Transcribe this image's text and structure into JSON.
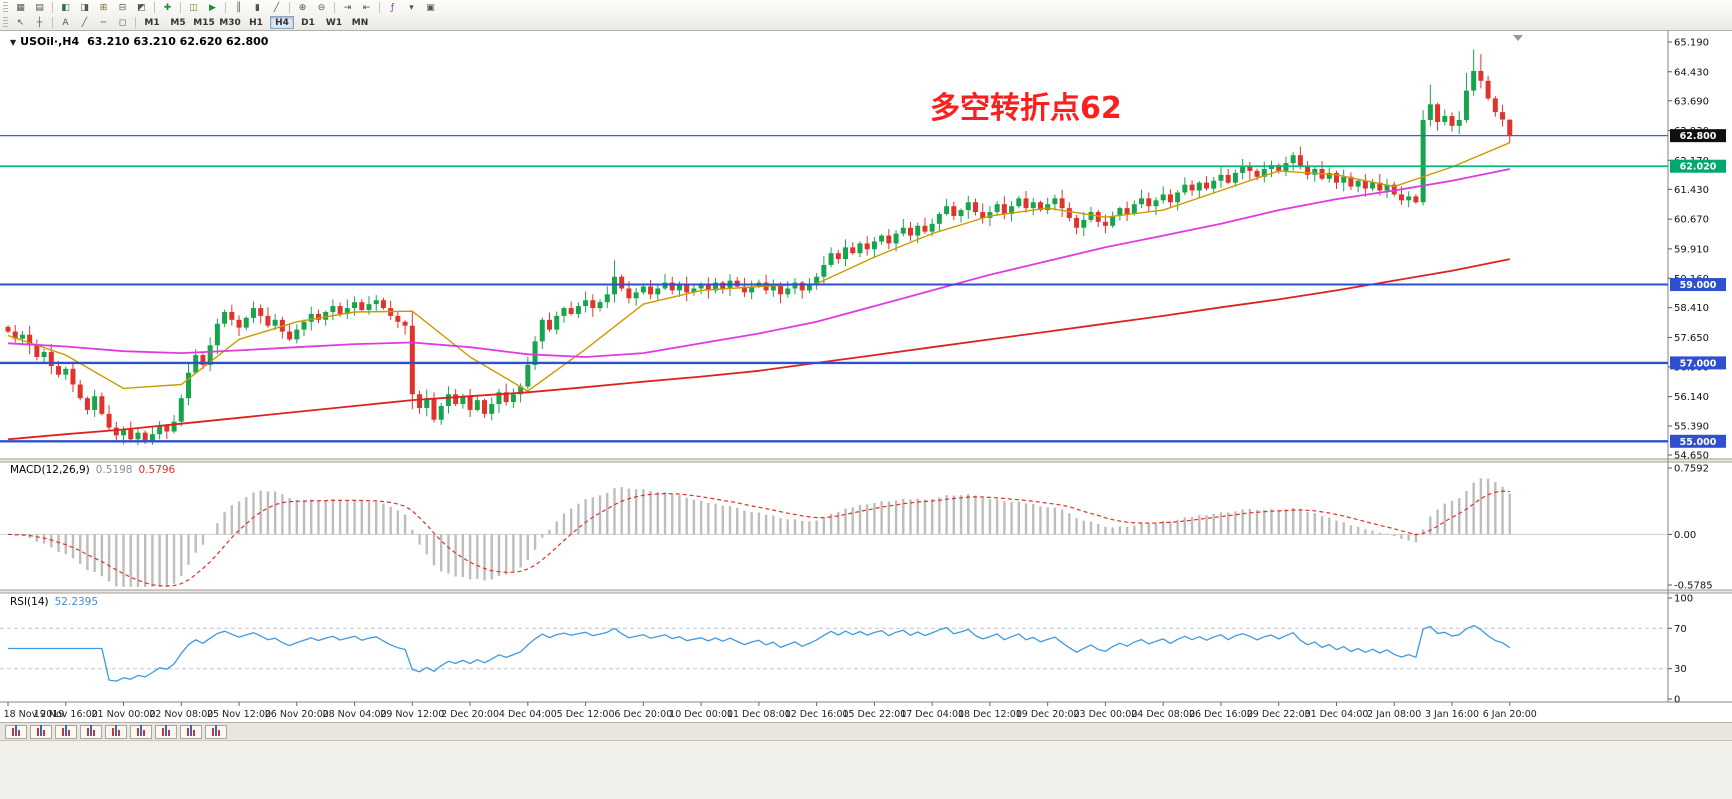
{
  "ui": {
    "caret": "▼"
  },
  "toolbar": {
    "row1": [
      {
        "grip": true
      },
      {
        "name": "new-chart-button",
        "glyph": "▦"
      },
      {
        "name": "profiles-button",
        "glyph": "▤"
      },
      {
        "sep": true
      },
      {
        "name": "market-watch-button",
        "glyph": "◧",
        "color": "#2f6f3f"
      },
      {
        "name": "data-window-button",
        "glyph": "◨"
      },
      {
        "name": "navigator-button",
        "glyph": "⊞",
        "color": "#7a652f"
      },
      {
        "name": "terminal-button",
        "glyph": "⊟"
      },
      {
        "name": "strategy-tester-button",
        "glyph": "◩"
      },
      {
        "sep": true
      },
      {
        "name": "new-order-button",
        "glyph": "✚",
        "color": "#1b8f3a"
      },
      {
        "sep": true
      },
      {
        "name": "metaeditor-button",
        "glyph": "◫",
        "color": "#86791f"
      },
      {
        "name": "autotrading-button",
        "glyph": "▶",
        "color": "#1b8f3a"
      },
      {
        "sep": true
      },
      {
        "name": "bar-chart-button",
        "glyph": "║"
      },
      {
        "name": "candlestick-chart-button",
        "glyph": "▮"
      },
      {
        "name": "line-chart-button",
        "glyph": "╱"
      },
      {
        "sep": true
      },
      {
        "name": "zoom-in-button",
        "glyph": "⊕"
      },
      {
        "name": "zoom-out-button",
        "glyph": "⊖"
      },
      {
        "sep": true
      },
      {
        "name": "auto-scroll-button",
        "glyph": "⇥"
      },
      {
        "name": "chart-shift-button",
        "glyph": "⇤"
      },
      {
        "sep": true
      },
      {
        "name": "indicators-button",
        "glyph": "ƒ",
        "color": "#7b38b8"
      },
      {
        "name": "periods-dropdown",
        "glyph": "▾"
      },
      {
        "name": "templates-button",
        "glyph": "▣"
      }
    ],
    "row2": [
      {
        "grip": true
      },
      {
        "name": "cursor-button",
        "glyph": "↖"
      },
      {
        "name": "crosshair-button",
        "glyph": "┼"
      },
      {
        "sep": true
      },
      {
        "name": "text-label-button",
        "glyph": "A"
      },
      {
        "name": "trendline-button",
        "glyph": "╱"
      },
      {
        "name": "horizontal-line-button",
        "glyph": "─"
      },
      {
        "name": "shapes-button",
        "glyph": "◻"
      },
      {
        "sep": true
      }
    ],
    "timeframes": [
      "M1",
      "M5",
      "M15",
      "M30",
      "H1",
      "H4",
      "D1",
      "W1",
      "MN"
    ],
    "active_timeframe": "H4"
  },
  "chart_data": {
    "type": "candlestick",
    "symbol": "USOil",
    "timeframe": "H4",
    "title_symbol": "USOil·,H4",
    "ohlc_text": "63.210 63.210 62.620 62.800",
    "current_ohlc": {
      "open": "63.210",
      "high": "63.210",
      "low": "62.620",
      "close": "62.800"
    },
    "annotation": {
      "text": "多空转折点62",
      "color": "#ff1e1e"
    },
    "closes": [
      57.8,
      57.62,
      57.72,
      57.45,
      57.15,
      57.28,
      56.92,
      56.7,
      56.85,
      56.45,
      56.1,
      55.8,
      56.15,
      55.7,
      55.35,
      55.15,
      55.3,
      55.05,
      55.22,
      54.98,
      55.18,
      55.4,
      55.25,
      55.5,
      56.1,
      56.75,
      57.2,
      56.95,
      57.45,
      58.0,
      58.3,
      58.1,
      57.9,
      58.15,
      58.4,
      58.2,
      57.95,
      58.1,
      57.8,
      57.6,
      57.85,
      58.05,
      58.25,
      58.1,
      58.3,
      58.45,
      58.25,
      58.4,
      58.55,
      58.35,
      58.5,
      58.6,
      58.4,
      58.2,
      58.05,
      57.95,
      56.2,
      55.85,
      56.1,
      55.55,
      55.9,
      56.2,
      55.95,
      56.15,
      55.8,
      56.05,
      55.7,
      55.95,
      56.25,
      56.0,
      56.2,
      56.4,
      56.95,
      57.55,
      58.1,
      57.85,
      58.2,
      58.4,
      58.25,
      58.45,
      58.6,
      58.4,
      58.55,
      58.75,
      59.2,
      58.9,
      58.65,
      58.8,
      58.95,
      58.75,
      58.9,
      59.05,
      58.85,
      59.0,
      58.8,
      58.9,
      59.0,
      58.85,
      59.05,
      58.9,
      59.1,
      58.95,
      58.8,
      58.95,
      59.05,
      58.85,
      59.0,
      58.75,
      58.9,
      59.05,
      58.85,
      59.0,
      59.2,
      59.5,
      59.8,
      59.65,
      59.95,
      59.8,
      60.05,
      59.9,
      60.1,
      60.25,
      60.05,
      60.3,
      60.45,
      60.25,
      60.5,
      60.35,
      60.55,
      60.8,
      61.0,
      60.75,
      60.9,
      61.1,
      60.85,
      60.7,
      60.85,
      61.05,
      60.8,
      61.0,
      61.2,
      60.95,
      61.1,
      60.9,
      61.05,
      61.2,
      60.95,
      60.7,
      60.45,
      60.65,
      60.85,
      60.6,
      60.5,
      60.75,
      60.95,
      60.8,
      61.05,
      61.2,
      61.0,
      61.15,
      61.3,
      61.1,
      61.35,
      61.55,
      61.4,
      61.6,
      61.45,
      61.65,
      61.8,
      61.6,
      61.85,
      62.0,
      61.9,
      61.75,
      61.95,
      62.05,
      61.9,
      62.1,
      62.3,
      62.0,
      61.8,
      61.95,
      61.7,
      61.85,
      61.6,
      61.75,
      61.5,
      61.65,
      61.45,
      61.6,
      61.4,
      61.55,
      61.3,
      61.15,
      61.25,
      61.1,
      63.2,
      63.6,
      63.15,
      63.3,
      63.05,
      63.2,
      63.95,
      64.45,
      64.2,
      63.75,
      63.4,
      63.21,
      62.8
    ],
    "first_open": 57.92,
    "wick_overrides": {
      "19": {
        "l": 54.93
      },
      "56": {
        "h": 58.3,
        "l": 55.82
      },
      "84": {
        "h": 59.62
      },
      "148": {
        "l": 60.28
      },
      "178": {
        "h": 62.38
      },
      "196": {
        "l": 61.02,
        "h": 63.45
      },
      "197": {
        "h": 64.1
      },
      "202": {
        "h": 64.4
      },
      "203": {
        "h": 65.0
      },
      "204": {
        "h": 64.88
      },
      "208": {
        "o": 63.21,
        "h": 63.21,
        "l": 62.62,
        "c": 62.8
      }
    },
    "candle_colors": {
      "up": "#18a44c",
      "down": "#e0332c"
    },
    "ma_lines": [
      {
        "name": "ma-fast",
        "color": "#cc9a00",
        "width": 1.4,
        "anchors": [
          57.7,
          57.2,
          56.35,
          56.45,
          57.6,
          58.05,
          58.3,
          58.32,
          57.15,
          56.28,
          57.35,
          58.5,
          58.85,
          58.95,
          59.02,
          59.7,
          60.3,
          60.75,
          60.95,
          60.72,
          60.9,
          61.4,
          61.9,
          61.8,
          61.5,
          62.0,
          62.62
        ]
      },
      {
        "name": "ma-medium",
        "color": "#e03ae0",
        "width": 1.8,
        "anchors": [
          57.5,
          57.42,
          57.3,
          57.25,
          57.32,
          57.4,
          57.48,
          57.52,
          57.4,
          57.22,
          57.15,
          57.25,
          57.5,
          57.75,
          58.05,
          58.45,
          58.85,
          59.25,
          59.6,
          59.95,
          60.25,
          60.55,
          60.9,
          61.18,
          61.4,
          61.65,
          61.95
        ]
      },
      {
        "name": "ma-slow",
        "color": "#dd2222",
        "width": 1.8,
        "anchors": [
          55.05,
          55.18,
          55.3,
          55.45,
          55.6,
          55.75,
          55.9,
          56.05,
          56.15,
          56.25,
          56.38,
          56.52,
          56.65,
          56.8,
          57.0,
          57.2,
          57.4,
          57.6,
          57.8,
          58.0,
          58.2,
          58.42,
          58.62,
          58.85,
          59.1,
          59.35,
          59.65
        ]
      }
    ],
    "hlines": [
      {
        "price": 62.8,
        "color": "#3f5fd8",
        "width": 1.2,
        "badge": "62.800",
        "badge_bg": "#101010"
      },
      {
        "price": 62.02,
        "color": "#00b97c",
        "width": 1.8,
        "badge": "62.020",
        "badge_bg": "#00a86e"
      },
      {
        "price": 59.0,
        "color": "#2e4fd0",
        "width": 2.0,
        "badge": "59.000",
        "badge_bg": "#2e4fd0"
      },
      {
        "price": 57.0,
        "color": "#2e4fd0",
        "width": 2.4,
        "badge": "57.000",
        "badge_bg": "#2e4fd0"
      },
      {
        "price": 55.0,
        "color": "#2e4fd0",
        "width": 2.4,
        "badge": "55.000",
        "badge_bg": "#2e4fd0"
      }
    ],
    "price_axis": {
      "labels": [
        "65.190",
        "64.430",
        "63.690",
        "62.930",
        "62.170",
        "61.430",
        "60.670",
        "59.910",
        "59.160",
        "58.410",
        "57.650",
        "56.900",
        "56.140",
        "55.390",
        "54.650"
      ],
      "values": [
        65.19,
        64.43,
        63.69,
        62.93,
        62.17,
        61.43,
        60.67,
        59.91,
        59.16,
        58.41,
        57.65,
        56.9,
        56.14,
        55.39,
        54.65
      ]
    },
    "time_labels": [
      "18 Nov 2019",
      "19 Nov 16:00",
      "21 Nov 00:00",
      "22 Nov 08:00",
      "25 Nov 12:00",
      "26 Nov 20:00",
      "28 Nov 04:00",
      "29 Nov 12:00",
      "2 Dec 20:00",
      "4 Dec 04:00",
      "5 Dec 12:00",
      "6 Dec 20:00",
      "10 Dec 00:00",
      "11 Dec 08:00",
      "12 Dec 16:00",
      "15 Dec 22:00",
      "17 Dec 04:00",
      "18 Dec 12:00",
      "19 Dec 20:00",
      "23 Dec 00:00",
      "24 Dec 08:00",
      "26 Dec 16:00",
      "29 Dec 22:00",
      "31 Dec 04:00",
      "2 Jan 08:00",
      "3 Jan 16:00",
      "6 Jan 20:00"
    ],
    "macd": {
      "label": "MACD(12,26,9)",
      "value_main": "0.5198",
      "value_signal": "0.5796",
      "fast": 12,
      "slow": 26,
      "signal": 9,
      "scale": [
        {
          "v": 0.7592,
          "t": "0.7592"
        },
        {
          "v": 0,
          "t": "0.00"
        },
        {
          "v": -0.5785,
          "t": "-0.5785"
        }
      ],
      "hist_color": "#bdbdbd",
      "signal_color": "#e0302a"
    },
    "rsi": {
      "label": "RSI(14)",
      "value": "52.2395",
      "period": 14,
      "levels": [
        30,
        70
      ],
      "scale": [
        {
          "v": 100,
          "t": "100"
        },
        {
          "v": 70,
          "t": "70"
        },
        {
          "v": 30,
          "t": "30"
        },
        {
          "v": 0,
          "t": "0"
        }
      ],
      "color": "#3e9be0"
    }
  },
  "bottom_tabs": {
    "count": 9
  }
}
